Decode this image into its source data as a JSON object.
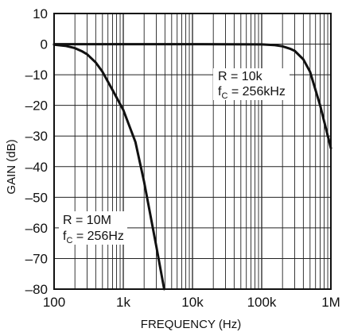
{
  "chart_data": {
    "type": "line",
    "title": "",
    "xlabel": "FREQUENCY (Hz)",
    "ylabel": "GAIN (dB)",
    "x_scale": "log",
    "xlim": [
      100,
      1000000
    ],
    "ylim": [
      -80,
      10
    ],
    "x_tick_values": [
      100,
      1000,
      10000,
      100000,
      1000000
    ],
    "x_tick_labels": [
      "100",
      "1k",
      "10k",
      "100k",
      "1M"
    ],
    "y_tick_values": [
      10,
      0,
      -10,
      -20,
      -30,
      -40,
      -50,
      -60,
      -70,
      -80
    ],
    "y_tick_labels": [
      "10",
      "0",
      "–10",
      "–20",
      "–30",
      "–40",
      "–50",
      "–60",
      "–70",
      "–80"
    ],
    "grid": true,
    "line_color": "#111111",
    "series": [
      {
        "x": [
          100,
          150,
          200,
          256,
          300,
          400,
          500,
          700,
          1000,
          1500,
          2000,
          3000,
          3900
        ],
        "y": [
          -0.2,
          -0.6,
          -1.3,
          -2.4,
          -3.3,
          -6,
          -9,
          -15,
          -21.5,
          -32,
          -45,
          -66,
          -80
        ]
      },
      {
        "x": [
          100,
          1000,
          10000,
          100000,
          150000,
          200000,
          256000,
          300000,
          400000,
          500000,
          700000,
          1000000
        ],
        "y": [
          0,
          0,
          0,
          -0.1,
          -0.3,
          -0.7,
          -1.5,
          -2.2,
          -5,
          -9,
          -20,
          -34
        ]
      }
    ],
    "annotations": [
      {
        "id": "high",
        "line1": "R = 10k",
        "fc_prefix": "f",
        "fc_sub": "C",
        "fc_value": " = 256kHz"
      },
      {
        "id": "low",
        "line1": "R = 10M",
        "fc_prefix": "f",
        "fc_sub": "C",
        "fc_value": " = 256Hz"
      }
    ]
  }
}
